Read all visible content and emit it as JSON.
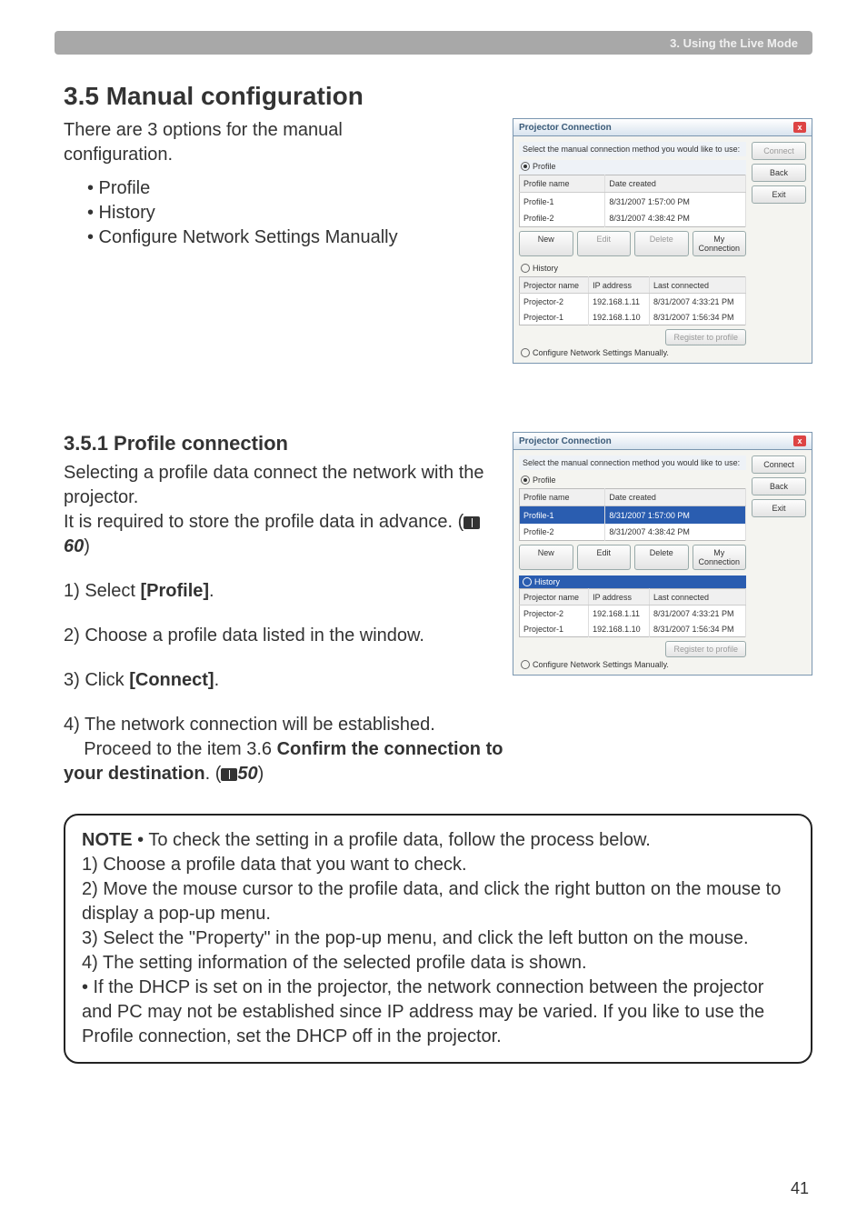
{
  "header": {
    "chapter": "3. Using the Live Mode"
  },
  "section": {
    "number_title": "3.5 Manual configuration",
    "intro": "There are 3 options for the manual configuration.",
    "bullets": [
      "• Profile",
      "• History",
      "• Configure Network Settings Manually"
    ]
  },
  "subsection": {
    "title": "3.5.1 Profile connection",
    "p1a": "Selecting a profile data connect the network with the projector.",
    "p1b": "It is required to store the profile data in advance. (",
    "p1_ref": "60",
    "p1c": ")",
    "steps": {
      "s1_pre": "1) Select ",
      "s1_bold": "[Profile]",
      "s1_post": ".",
      "s2": "2) Choose a profile data listed in the window.",
      "s3_pre": "3) Click ",
      "s3_bold": "[Connect]",
      "s3_post": ".",
      "s4a": "4) The network connection will be established.",
      "s4b_pre": "Proceed to the item 3.6 ",
      "s4b_bold": "Confirm the connection to your destination",
      "s4b_post": ". (",
      "s4_ref": "50",
      "s4c": ")"
    }
  },
  "note": {
    "label": "NOTE",
    "intro": "  • To check the setting in a profile data, follow the process below.",
    "l1": "1) Choose a profile data that you want to check.",
    "l2": "2) Move the mouse cursor to the profile data, and click the right button on the mouse to display a pop-up menu.",
    "l3": "3) Select the \"Property\" in the pop-up menu, and click the left button on the mouse.",
    "l4": "4) The setting information of the selected profile data is shown.",
    "l5": "• If the DHCP is set on in the projector, the network connection between the projector and PC may not be established since IP address may be varied. If you like to use the Profile connection, set the DHCP off in the projector."
  },
  "page": "41",
  "dialog": {
    "title": "Projector Connection",
    "msg": "Select the manual connection method you would like to use:",
    "radios": {
      "profile": "Profile",
      "history": "History",
      "manual": "Configure Network Settings Manually."
    },
    "profile_table": {
      "headers": [
        "Profile name",
        "Date created"
      ],
      "rows": [
        [
          "Profile-1",
          "8/31/2007 1:57:00 PM"
        ],
        [
          "Profile-2",
          "8/31/2007 4:38:42 PM"
        ]
      ]
    },
    "history_table": {
      "headers": [
        "Projector name",
        "IP address",
        "Last connected"
      ],
      "rows": [
        [
          "Projector-2",
          "192.168.1.11",
          "8/31/2007 4:33:21 PM"
        ],
        [
          "Projector-1",
          "192.168.1.10",
          "8/31/2007 1:56:34 PM"
        ]
      ]
    },
    "buttons": {
      "new": "New",
      "edit": "Edit",
      "delete": "Delete",
      "myconn": "My Connection",
      "register": "Register to profile",
      "connect": "Connect",
      "back": "Back",
      "exit": "Exit"
    }
  }
}
